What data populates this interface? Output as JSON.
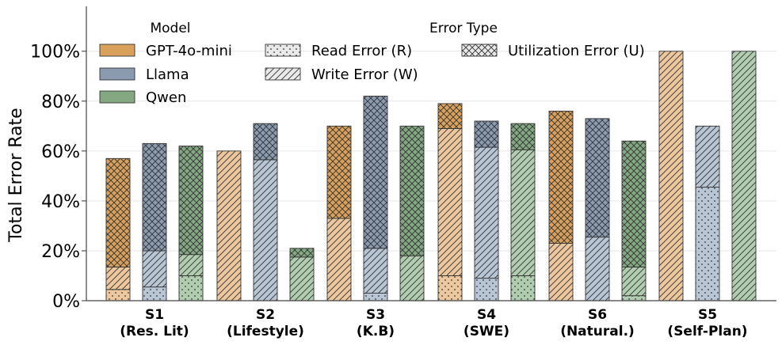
{
  "chart_data": {
    "type": "bar",
    "stacked": true,
    "grouped": true,
    "ylabel": "Total Error Rate",
    "xlabel": "",
    "ylim": [
      0,
      118
    ],
    "yticks": [
      {
        "value": 0,
        "label": "0%"
      },
      {
        "value": 20,
        "label": "20%"
      },
      {
        "value": 40,
        "label": "40%"
      },
      {
        "value": 60,
        "label": "60%"
      },
      {
        "value": 80,
        "label": "80%"
      },
      {
        "value": 100,
        "label": "100%"
      }
    ],
    "grid": "horizontal",
    "categories": [
      {
        "code": "S1",
        "name": "(Res. Lit)"
      },
      {
        "code": "S2",
        "name": "(Lifestyle)"
      },
      {
        "code": "S3",
        "name": "(K.B)"
      },
      {
        "code": "S4",
        "name": "(SWE)"
      },
      {
        "code": "S6",
        "name": "(Natural.)"
      },
      {
        "code": "S5",
        "name": "(Self-Plan)"
      }
    ],
    "models": [
      {
        "name": "GPT-4o-mini",
        "dark": "#D9A15C",
        "light": "#EDC89F"
      },
      {
        "name": "Llama",
        "dark": "#8A9BB0",
        "light": "#B8C5D5"
      },
      {
        "name": "Qwen",
        "dark": "#84A882",
        "light": "#B1CDAF"
      }
    ],
    "error_types": [
      {
        "key": "R",
        "name": "Read Error (R)",
        "pattern": "dots"
      },
      {
        "key": "W",
        "name": "Write Error (W)",
        "pattern": "diagonal"
      },
      {
        "key": "U",
        "name": "Utilization Error (U)",
        "pattern": "crosshatch"
      }
    ],
    "legend_titles": {
      "model": "Model",
      "error_type": "Error Type"
    },
    "legend_position": "top",
    "data": {
      "GPT-4o-mini": {
        "R": [
          4.5,
          0,
          0,
          10,
          0,
          0
        ],
        "W": [
          9,
          60,
          33,
          59,
          23,
          100
        ],
        "U": [
          43.5,
          0,
          37,
          10,
          53,
          0
        ]
      },
      "Llama": {
        "R": [
          5.5,
          0,
          3,
          9,
          0,
          45.5
        ],
        "W": [
          14.5,
          56.5,
          18,
          52.5,
          25.5,
          24.5
        ],
        "U": [
          43,
          14.5,
          61,
          10.5,
          47.5,
          0
        ]
      },
      "Qwen": {
        "R": [
          10,
          0,
          0,
          10,
          2,
          0
        ],
        "W": [
          8.5,
          17.5,
          18,
          50.5,
          11.5,
          100
        ],
        "U": [
          43.5,
          3.5,
          52,
          10.5,
          50.5,
          0
        ]
      }
    }
  }
}
